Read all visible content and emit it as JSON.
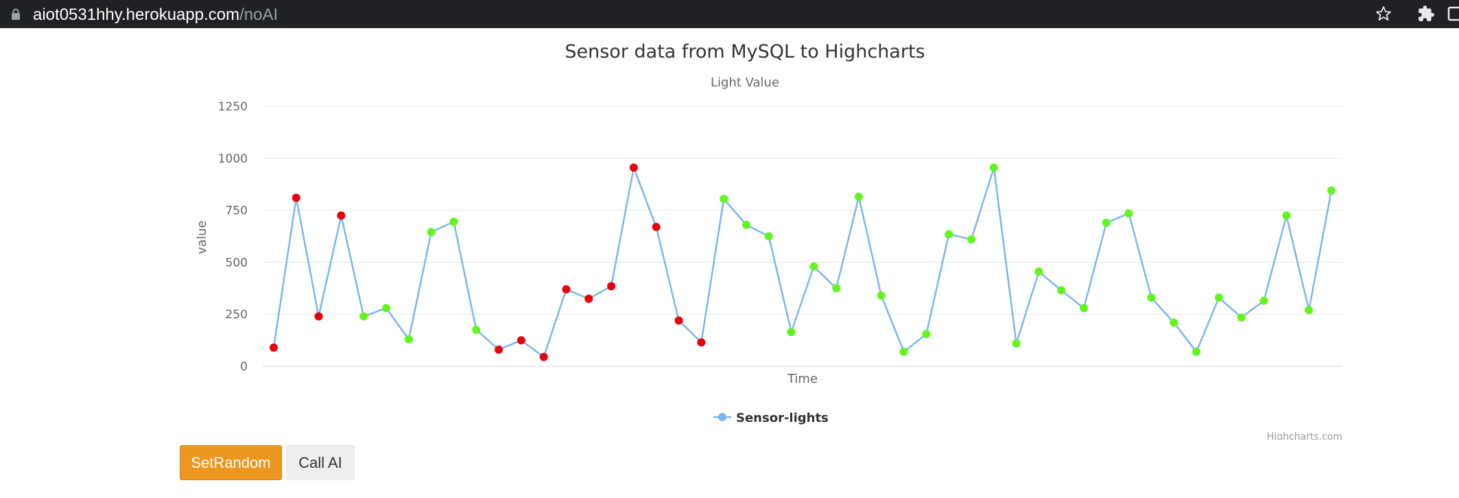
{
  "browser": {
    "url_host": "aiot0531hhy.herokuapp.com",
    "url_path": "/noAI",
    "icons": [
      "lock-icon",
      "star-icon",
      "puzzle-icon",
      "window-icon"
    ]
  },
  "chart_data": {
    "type": "line",
    "title": "Sensor data from MySQL to Highcharts",
    "subtitle": "Light Value",
    "xlabel": "Time",
    "ylabel": "value",
    "ylim": [
      0,
      1250
    ],
    "yticks": [
      0,
      250,
      500,
      750,
      1000,
      1250
    ],
    "grid": true,
    "legend_position": "bottom-center",
    "credits": "Highcharts.com",
    "series": [
      {
        "name": "Sensor-lights",
        "color": "#7cb5ec",
        "values": [
          90,
          810,
          240,
          725,
          240,
          280,
          130,
          645,
          695,
          175,
          80,
          125,
          45,
          370,
          325,
          385,
          955,
          670,
          220,
          115,
          805,
          680,
          625,
          165,
          480,
          375,
          815,
          340,
          70,
          155,
          635,
          610,
          955,
          110,
          455,
          365,
          280,
          690,
          735,
          330,
          210,
          70,
          330,
          235,
          315,
          725,
          270,
          845
        ],
        "point_colors": [
          "#e8000b",
          "#e8000b",
          "#e8000b",
          "#e8000b",
          "#61f61e",
          "#61f61e",
          "#61f61e",
          "#61f61e",
          "#61f61e",
          "#61f61e",
          "#e8000b",
          "#e8000b",
          "#e8000b",
          "#e8000b",
          "#e8000b",
          "#e8000b",
          "#e8000b",
          "#e8000b",
          "#e8000b",
          "#e8000b",
          "#61f61e",
          "#61f61e",
          "#61f61e",
          "#61f61e",
          "#61f61e",
          "#61f61e",
          "#61f61e",
          "#61f61e",
          "#61f61e",
          "#61f61e",
          "#61f61e",
          "#61f61e",
          "#61f61e",
          "#61f61e",
          "#61f61e",
          "#61f61e",
          "#61f61e",
          "#61f61e",
          "#61f61e",
          "#61f61e",
          "#61f61e",
          "#61f61e",
          "#61f61e",
          "#61f61e",
          "#61f61e",
          "#61f61e",
          "#61f61e",
          "#61f61e"
        ]
      }
    ]
  },
  "buttons": {
    "set_random": "SetRandom",
    "call_ai": "Call AI"
  }
}
